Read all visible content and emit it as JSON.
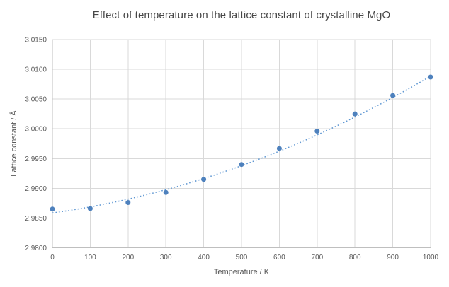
{
  "chart_data": {
    "type": "scatter",
    "title": "Effect of temperature on the lattice constant of crystalline MgO",
    "xlabel": "Temperature / K",
    "ylabel": "Lattice constant / Å",
    "x": [
      0,
      100,
      200,
      300,
      400,
      500,
      600,
      700,
      800,
      900,
      1000
    ],
    "y": [
      2.9865,
      2.9866,
      2.9876,
      2.9893,
      2.9915,
      2.994,
      2.9967,
      2.9996,
      3.0025,
      3.0056,
      3.0087
    ],
    "series_name": "Lattice constant",
    "xlim": [
      0,
      1000
    ],
    "ylim": [
      2.98,
      3.015
    ],
    "xticks": [
      {
        "value": 0,
        "label": "0"
      },
      {
        "value": 100,
        "label": "100"
      },
      {
        "value": 200,
        "label": "200"
      },
      {
        "value": 300,
        "label": "300"
      },
      {
        "value": 400,
        "label": "400"
      },
      {
        "value": 500,
        "label": "500"
      },
      {
        "value": 600,
        "label": "600"
      },
      {
        "value": 700,
        "label": "700"
      },
      {
        "value": 800,
        "label": "800"
      },
      {
        "value": 900,
        "label": "900"
      },
      {
        "value": 1000,
        "label": "1000"
      }
    ],
    "yticks": [
      {
        "value": 2.98,
        "label": "2.9800"
      },
      {
        "value": 2.985,
        "label": "2.9850"
      },
      {
        "value": 2.99,
        "label": "2.9900"
      },
      {
        "value": 2.995,
        "label": "2.9950"
      },
      {
        "value": 3.0,
        "label": "3.0000"
      },
      {
        "value": 3.005,
        "label": "3.0050"
      },
      {
        "value": 3.01,
        "label": "3.0100"
      },
      {
        "value": 3.015,
        "label": "3.0150"
      }
    ],
    "grid": true,
    "legend": "none",
    "trendline": {
      "style": "dotted",
      "fit": "polynomial",
      "order": 2,
      "coefficients": [
        2.98585,
        8.8e-06,
        1.42e-08
      ]
    },
    "colors": {
      "marker": "#4e81bd",
      "trendline": "#5f97d2",
      "gridline": "#d9d9d9",
      "axis_line": "#bfbfbf",
      "tick_text": "#595959",
      "title_text": "#474747"
    }
  }
}
